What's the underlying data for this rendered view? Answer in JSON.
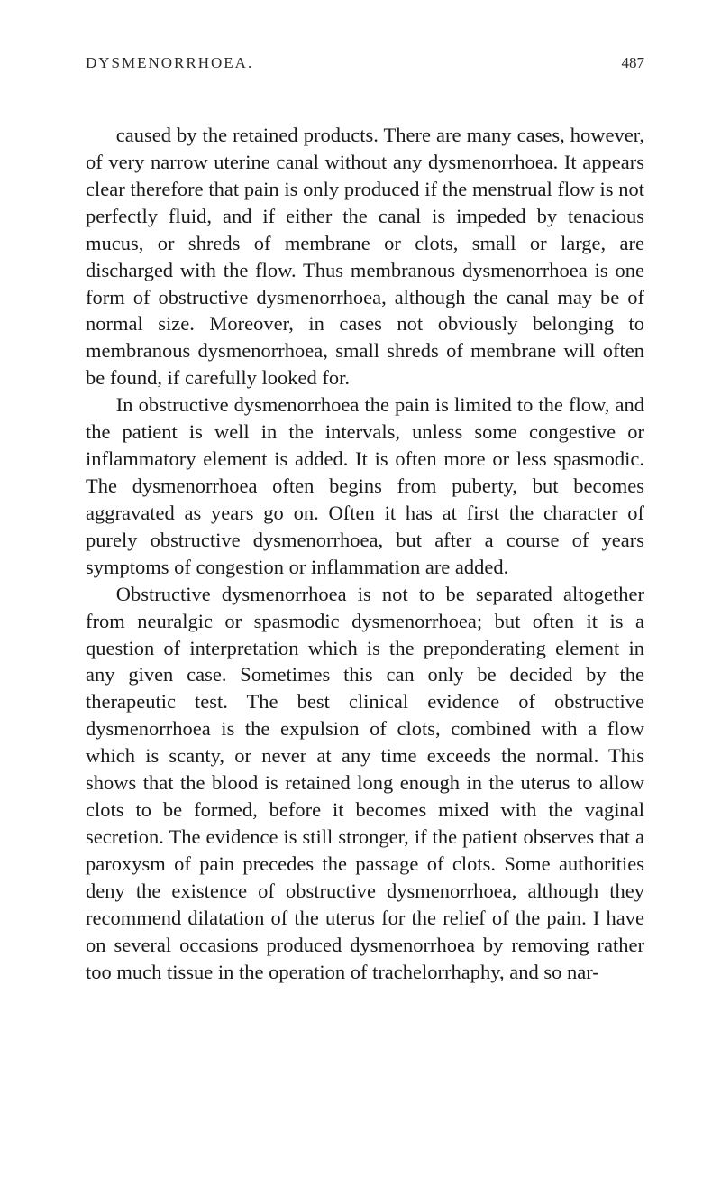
{
  "header": {
    "title": "DYSMENORRHOEA.",
    "pageNumber": "487"
  },
  "paragraphs": {
    "p1": "caused by the retained products. There are many cases, however, of very narrow uterine canal without any dysmenorrhoea. It appears clear therefore that pain is only produced if the menstrual flow is not perfectly fluid, and if either the canal is impeded by tenacious mucus, or shreds of membrane or clots, small or large, are discharged with the flow. Thus membranous dysmenorrhoea is one form of obstructive dysmenorrhoea, although the canal may be of normal size. Moreover, in cases not obviously belonging to membranous dysmenorrhoea, small shreds of membrane will often be found, if carefully looked for.",
    "p2": "In obstructive dysmenorrhoea the pain is limited to the flow, and the patient is well in the intervals, unless some congestive or inflammatory element is added. It is often more or less spasmodic. The dysmenorrhoea often begins from puberty, but becomes aggravated as years go on. Often it has at first the character of purely obstructive dysmenorrhoea, but after a course of years symptoms of congestion or inflammation are added.",
    "p3": "Obstructive dysmenorrhoea is not to be separated altogether from neuralgic or spasmodic dysmenorrhoea; but often it is a question of interpretation which is the preponderating element in any given case. Sometimes this can only be decided by the therapeutic test. The best clinical evidence of obstructive dysmenorrhoea is the expulsion of clots, combined with a flow which is scanty, or never at any time exceeds the normal. This shows that the blood is retained long enough in the uterus to allow clots to be formed, before it becomes mixed with the vaginal secretion. The evidence is still stronger, if the patient observes that a paroxysm of pain precedes the passage of clots. Some authori­ties deny the existence of obstructive dysmenorrhoea, although they recommend dilatation of the uterus for the relief of the pain. I have on several occasions produced dysmenorrhoea by removing rather too much tissue in the operation of trachelorrhaphy, and so nar-"
  }
}
